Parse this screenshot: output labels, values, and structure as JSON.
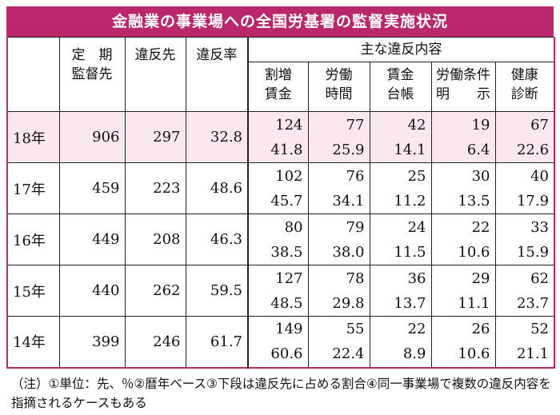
{
  "title": "金融業の事業場への全国労基署の監督実施状況",
  "headers": {
    "inspections": [
      "定　期",
      "監督先"
    ],
    "violations": "違反先",
    "rate": "違反率",
    "main_group": "主な違反内容",
    "sub": [
      [
        "割増",
        "賃金"
      ],
      [
        "労働",
        "時間"
      ],
      [
        "賃金",
        "台帳"
      ],
      [
        "労働条件",
        "明　　示"
      ],
      [
        "健康",
        "診断"
      ]
    ]
  },
  "rows": [
    {
      "year": "18年",
      "inspections": "906",
      "violations": "297",
      "rate": "32.8",
      "details": [
        [
          "124",
          "41.8"
        ],
        [
          "77",
          "25.9"
        ],
        [
          "42",
          "14.1"
        ],
        [
          "19",
          "6.4"
        ],
        [
          "67",
          "22.6"
        ]
      ]
    },
    {
      "year": "17年",
      "inspections": "459",
      "violations": "223",
      "rate": "48.6",
      "details": [
        [
          "102",
          "45.7"
        ],
        [
          "76",
          "34.1"
        ],
        [
          "25",
          "11.2"
        ],
        [
          "30",
          "13.5"
        ],
        [
          "40",
          "17.9"
        ]
      ]
    },
    {
      "year": "16年",
      "inspections": "449",
      "violations": "208",
      "rate": "46.3",
      "details": [
        [
          "80",
          "38.5"
        ],
        [
          "79",
          "38.0"
        ],
        [
          "24",
          "11.5"
        ],
        [
          "22",
          "10.6"
        ],
        [
          "33",
          "15.9"
        ]
      ]
    },
    {
      "year": "15年",
      "inspections": "440",
      "violations": "262",
      "rate": "59.5",
      "details": [
        [
          "127",
          "48.5"
        ],
        [
          "78",
          "29.8"
        ],
        [
          "36",
          "13.7"
        ],
        [
          "29",
          "11.1"
        ],
        [
          "62",
          "23.7"
        ]
      ]
    },
    {
      "year": "14年",
      "inspections": "399",
      "violations": "246",
      "rate": "61.7",
      "details": [
        [
          "149",
          "60.6"
        ],
        [
          "55",
          "22.4"
        ],
        [
          "22",
          "8.9"
        ],
        [
          "26",
          "10.6"
        ],
        [
          "52",
          "21.1"
        ]
      ]
    }
  ],
  "note": "（注）①単位：先、％②暦年ベース③下段は違反先に占める割合④同一事業場で複数の違反内容を指摘されるケースもある",
  "colors": {
    "accent": "#b8286a",
    "highlight_row": "#fbe7ef"
  }
}
